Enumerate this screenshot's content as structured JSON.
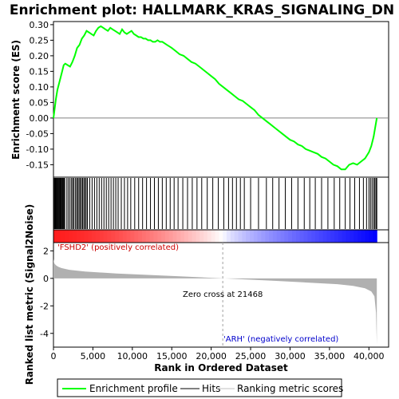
{
  "chart_data": {
    "type": "line",
    "title": "Enrichment plot: HALLMARK_KRAS_SIGNALING_DN",
    "es_panel": {
      "ylabel": "Enrichment score (ES)",
      "ylim": [
        -0.19,
        0.31
      ],
      "yticks": [
        "0.30",
        "0.25",
        "0.20",
        "0.15",
        "0.10",
        "0.05",
        "0.00",
        "-0.05",
        "-0.10",
        "-0.15"
      ],
      "ytick_values": [
        0.3,
        0.25,
        0.2,
        0.15,
        0.1,
        0.05,
        0.0,
        -0.05,
        -0.1,
        -0.15
      ],
      "series_color": "#00ff00",
      "x": [
        0,
        150,
        300,
        500,
        700,
        900,
        1100,
        1300,
        1500,
        1800,
        2100,
        2400,
        2700,
        3000,
        3300,
        3600,
        3900,
        4200,
        4500,
        4800,
        5100,
        5400,
        5700,
        6000,
        6300,
        6600,
        6900,
        7200,
        7500,
        7800,
        8100,
        8400,
        8700,
        9000,
        9300,
        9600,
        9900,
        10200,
        10500,
        10800,
        11100,
        11400,
        11700,
        12000,
        12300,
        12600,
        12900,
        13200,
        13500,
        13800,
        14100,
        14400,
        14700,
        15000,
        15500,
        16000,
        16500,
        17000,
        17500,
        18000,
        18500,
        19000,
        19500,
        20000,
        20500,
        21000,
        21500,
        22000,
        22500,
        23000,
        23500,
        24000,
        24500,
        25000,
        25500,
        26000,
        26500,
        27000,
        27500,
        28000,
        28500,
        29000,
        29500,
        30000,
        30500,
        31000,
        31500,
        32000,
        32500,
        33000,
        33500,
        34000,
        34500,
        35000,
        35500,
        36000,
        36500,
        37000,
        37500,
        38000,
        38500,
        39000,
        39500,
        40000,
        40300,
        40600,
        40800,
        41000
      ],
      "y": [
        0.0,
        0.03,
        0.06,
        0.09,
        0.11,
        0.13,
        0.15,
        0.17,
        0.175,
        0.17,
        0.165,
        0.18,
        0.2,
        0.225,
        0.235,
        0.255,
        0.265,
        0.28,
        0.275,
        0.27,
        0.265,
        0.28,
        0.29,
        0.295,
        0.29,
        0.285,
        0.28,
        0.29,
        0.285,
        0.28,
        0.275,
        0.27,
        0.285,
        0.275,
        0.27,
        0.275,
        0.28,
        0.27,
        0.265,
        0.26,
        0.26,
        0.255,
        0.255,
        0.25,
        0.25,
        0.245,
        0.245,
        0.25,
        0.245,
        0.245,
        0.24,
        0.235,
        0.23,
        0.225,
        0.215,
        0.205,
        0.2,
        0.19,
        0.18,
        0.175,
        0.165,
        0.155,
        0.145,
        0.135,
        0.125,
        0.11,
        0.1,
        0.09,
        0.08,
        0.07,
        0.06,
        0.055,
        0.045,
        0.035,
        0.025,
        0.01,
        0.0,
        -0.01,
        -0.02,
        -0.03,
        -0.04,
        -0.05,
        -0.06,
        -0.07,
        -0.075,
        -0.085,
        -0.09,
        -0.1,
        -0.105,
        -0.11,
        -0.115,
        -0.125,
        -0.13,
        -0.14,
        -0.15,
        -0.155,
        -0.165,
        -0.165,
        -0.15,
        -0.145,
        -0.15,
        -0.14,
        -0.13,
        -0.11,
        -0.09,
        -0.06,
        -0.03,
        0.0
      ]
    },
    "hits_panel": {
      "hit_positions": [
        40,
        120,
        210,
        300,
        380,
        470,
        560,
        640,
        730,
        820,
        900,
        990,
        1080,
        1170,
        1250,
        1340,
        1430,
        1700,
        1900,
        2100,
        2300,
        2450,
        2600,
        2800,
        2950,
        3100,
        3250,
        3400,
        3550,
        3700,
        3850,
        4000,
        4150,
        4300,
        4600,
        4900,
        5200,
        5500,
        5800,
        6100,
        6400,
        6700,
        7000,
        7300,
        7600,
        7900,
        8200,
        8600,
        9000,
        9400,
        9800,
        10300,
        10800,
        11300,
        11800,
        12300,
        12800,
        13300,
        13800,
        14300,
        14800,
        15300,
        15800,
        16400,
        17000,
        17600,
        18200,
        18800,
        19500,
        20200,
        20900,
        21600,
        22200,
        22700,
        23200,
        23700,
        24200,
        25000,
        26000,
        27000,
        27800,
        28600,
        29400,
        30200,
        31000,
        31800,
        32500,
        33200,
        34000,
        34800,
        35600,
        36300,
        37000,
        37600,
        38200,
        38800,
        39300,
        39700,
        40000,
        40200,
        40400,
        40600,
        40750,
        40900,
        41000
      ]
    },
    "metric_panel": {
      "ylabel": "Ranked list metric (Signal2Noise)",
      "ylim": [
        -5,
        2.6
      ],
      "yticks": [
        "2",
        "0",
        "-2",
        "-4"
      ],
      "ytick_values": [
        2,
        0,
        -2,
        -4
      ],
      "zero_cross_label": "Zero cross at 21468",
      "zero_cross": 21468,
      "pos_label": "'FSHD2' (positively correlated)",
      "neg_label": "'ARH' (negatively correlated)",
      "x": [
        0,
        100,
        300,
        600,
        1000,
        2000,
        4000,
        8000,
        12000,
        16000,
        20000,
        21468,
        24000,
        28000,
        32000,
        36000,
        38000,
        39500,
        40300,
        40700,
        40900,
        41000
      ],
      "y": [
        1.4,
        1.1,
        0.95,
        0.85,
        0.75,
        0.62,
        0.5,
        0.35,
        0.25,
        0.15,
        0.04,
        0.0,
        -0.07,
        -0.18,
        -0.3,
        -0.42,
        -0.55,
        -0.72,
        -0.95,
        -1.3,
        -2.5,
        -4.8
      ]
    },
    "xlabel": "Rank in Ordered Dataset",
    "xticks": [
      "0",
      "5,000",
      "10,000",
      "15,000",
      "20,000",
      "25,000",
      "30,000",
      "35,000",
      "40,000"
    ],
    "xtick_values": [
      0,
      5000,
      10000,
      15000,
      20000,
      25000,
      30000,
      35000,
      40000
    ],
    "xlim": [
      0,
      42500
    ],
    "legend": {
      "placement": "bottom",
      "items": [
        "Enrichment profile",
        "Hits",
        "Ranking metric scores"
      ]
    }
  }
}
